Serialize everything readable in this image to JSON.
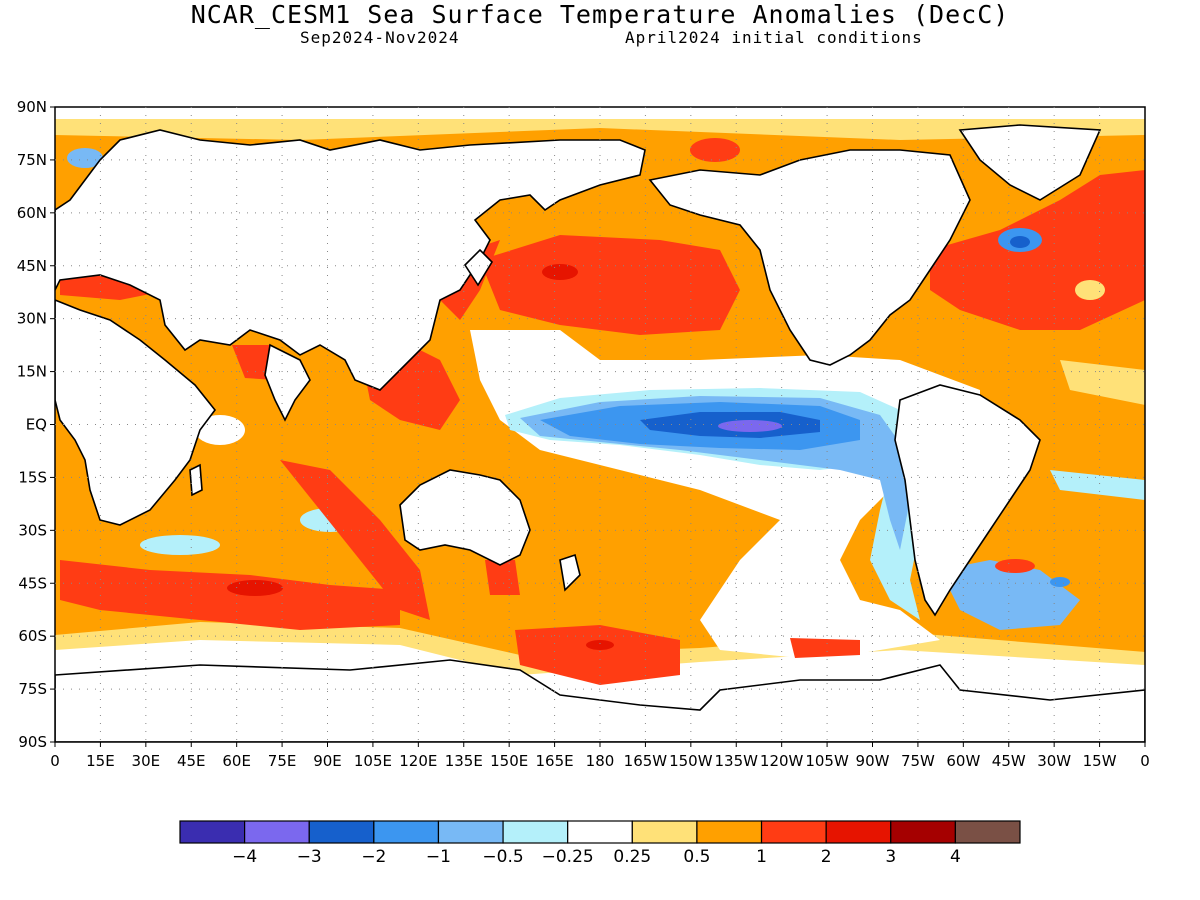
{
  "title": "NCAR_CESM1 Sea Surface Temperature Anomalies (DecC)",
  "subtitle_left": "Sep2024-Nov2024",
  "subtitle_right": "April2024 initial conditions",
  "lat_labels": [
    "90N",
    "75N",
    "60N",
    "45N",
    "30N",
    "15N",
    "EQ",
    "15S",
    "30S",
    "45S",
    "60S",
    "75S",
    "90S"
  ],
  "lon_labels": [
    "0",
    "15E",
    "30E",
    "45E",
    "60E",
    "75E",
    "90E",
    "105E",
    "120E",
    "135E",
    "150E",
    "165E",
    "180",
    "165W",
    "150W",
    "135W",
    "120W",
    "105W",
    "90W",
    "75W",
    "60W",
    "45W",
    "30W",
    "15W",
    "0"
  ],
  "colorbar": {
    "colors": [
      "#3a2db0",
      "#7b68ee",
      "#1660cc",
      "#3c96f0",
      "#78b9f5",
      "#b4f0fa",
      "#ffffff",
      "#ffe178",
      "#ffa000",
      "#ff3c14",
      "#e61400",
      "#a50000",
      "#7a5045"
    ],
    "labels": [
      "-4",
      "-3",
      "-2",
      "-1",
      "-0.5",
      "-0.25",
      "0.25",
      "0.5",
      "1",
      "2",
      "3",
      "4"
    ]
  }
}
